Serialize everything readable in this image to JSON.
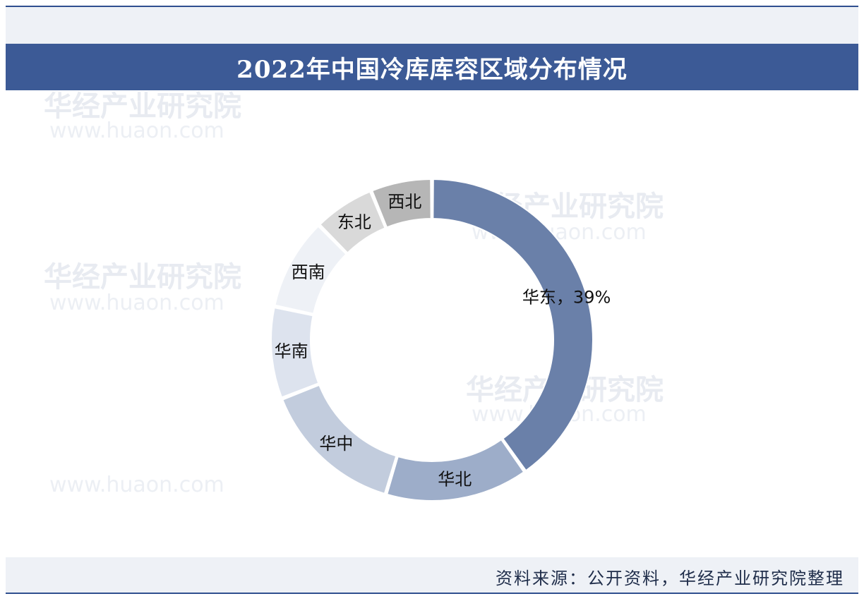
{
  "header": {
    "title": "2022年中国冷库库容区域分布情况"
  },
  "watermark": {
    "text": "华经产业研究院",
    "url": "www.huaon.com"
  },
  "chart_data": {
    "type": "pie",
    "donut": true,
    "title": "2022年中国冷库库容区域分布情况",
    "series": [
      {
        "name": "华东",
        "label": "华东，39%",
        "value": 39,
        "color": "#6a80a9"
      },
      {
        "name": "华北",
        "label": "华北",
        "value": 14,
        "color": "#9dadc9"
      },
      {
        "name": "华中",
        "label": "华中",
        "value": 14,
        "color": "#c2ccdd"
      },
      {
        "name": "华南",
        "label": "华南",
        "value": 9,
        "color": "#dde3ee"
      },
      {
        "name": "西南",
        "label": "西南",
        "value": 9,
        "color": "#eef1f6"
      },
      {
        "name": "东北",
        "label": "东北",
        "value": 6,
        "color": "#d9d9d9"
      },
      {
        "name": "西北",
        "label": "西北",
        "value": 6,
        "color": "#b6b6b6"
      }
    ]
  },
  "footer": {
    "source": "资料来源：公开资料，华经产业研究院整理"
  }
}
